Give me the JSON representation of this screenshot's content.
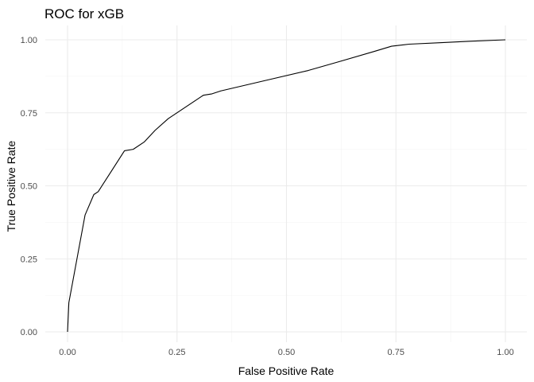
{
  "chart_data": {
    "type": "line",
    "title": "ROC for xGB",
    "xlabel": "False Positive Rate",
    "ylabel": "True Positive Rate",
    "xlim": [
      0,
      1
    ],
    "ylim": [
      0,
      1
    ],
    "x_ticks": [
      0,
      0.25,
      0.5,
      0.75,
      1
    ],
    "y_ticks": [
      0,
      0.25,
      0.5,
      0.75,
      1
    ],
    "x_tick_labels": [
      "0.00",
      "0.25",
      "0.50",
      "0.75",
      "1.00"
    ],
    "y_tick_labels": [
      "0.00",
      "0.25",
      "0.50",
      "0.75",
      "1.00"
    ],
    "grid": true,
    "series": [
      {
        "x": [
          0,
          0.003,
          0.04,
          0.06,
          0.07,
          0.1,
          0.13,
          0.15,
          0.175,
          0.2,
          0.23,
          0.26,
          0.29,
          0.31,
          0.33,
          0.35,
          0.45,
          0.55,
          0.62,
          0.7,
          0.74,
          0.78,
          0.85,
          0.92,
          1.0
        ],
        "y": [
          0,
          0.1,
          0.4,
          0.47,
          0.48,
          0.55,
          0.62,
          0.625,
          0.65,
          0.69,
          0.73,
          0.76,
          0.79,
          0.81,
          0.815,
          0.825,
          0.86,
          0.895,
          0.925,
          0.96,
          0.978,
          0.985,
          0.99,
          0.995,
          1.0
        ]
      }
    ]
  }
}
